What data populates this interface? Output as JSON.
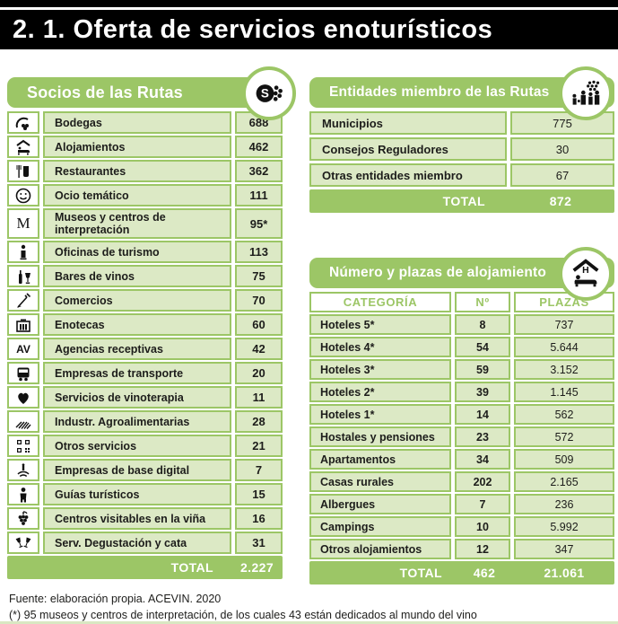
{
  "title": "2. 1. Oferta de servicios enoturísticos",
  "colors": {
    "accent_green": "#9CC666",
    "cell_green": "#DCE9C5",
    "title_black": "#000000",
    "text_dark": "#1D1D1B",
    "white": "#FFFFFF"
  },
  "socios_table": {
    "header": "Socios de las Rutas",
    "header_icon": "socios-badge-icon",
    "rows": [
      {
        "icon": "winery-icon",
        "label": "Bodegas",
        "value": "688"
      },
      {
        "icon": "lodging-icon",
        "label": "Alojamientos",
        "value": "462"
      },
      {
        "icon": "restaurant-icon",
        "label": "Restaurantes",
        "value": "362"
      },
      {
        "icon": "smiley-icon",
        "label": "Ocio temático",
        "value": "111"
      },
      {
        "icon": "museum-letter-icon",
        "label": "Museos y centros de interpretación",
        "value": "95*"
      },
      {
        "icon": "tourism-office-icon",
        "label": "Oficinas de turismo",
        "value": "113"
      },
      {
        "icon": "wine-bar-icon",
        "label": "Bares de vinos",
        "value": "75"
      },
      {
        "icon": "commerce-icon",
        "label": "Comercios",
        "value": "70"
      },
      {
        "icon": "wine-rack-icon",
        "label": "Enotecas",
        "value": "60"
      },
      {
        "icon": "travel-agency-letters-icon",
        "label": "Agencias receptivas",
        "value": "42"
      },
      {
        "icon": "bus-icon",
        "label": "Empresas de transporte",
        "value": "20"
      },
      {
        "icon": "heart-spa-icon",
        "label": "Servicios de vinoterapia",
        "value": "11"
      },
      {
        "icon": "field-rows-icon",
        "label": "Industr. Agroalimentarias",
        "value": "28"
      },
      {
        "icon": "qr-code-icon",
        "label": "Otros servicios",
        "value": "21"
      },
      {
        "icon": "wifi-signal-icon",
        "label": "Empresas de base digital",
        "value": "7"
      },
      {
        "icon": "person-guide-icon",
        "label": "Guías turísticos",
        "value": "15"
      },
      {
        "icon": "grapes-icon",
        "label": "Centros visitables en la viña",
        "value": "16"
      },
      {
        "icon": "wine-glasses-icon",
        "label": "Serv. Degustación y cata",
        "value": "31"
      }
    ],
    "total_label": "TOTAL",
    "total_value": "2.227"
  },
  "entidades_table": {
    "header": "Entidades miembro de las Rutas",
    "header_icon": "entities-badge-icon",
    "rows": [
      {
        "label": "Municipios",
        "value": "775"
      },
      {
        "label": "Consejos Reguladores",
        "value": "30"
      },
      {
        "label": "Otras entidades miembro",
        "value": "67"
      }
    ],
    "total_label": "TOTAL",
    "total_value": "872"
  },
  "alojamiento_table": {
    "header": "Número y plazas de alojamiento",
    "header_icon": "lodging-badge-icon",
    "columns": [
      "CATEGORÍA",
      "Nº",
      "PLAZAS"
    ],
    "rows": [
      {
        "category": "Hoteles 5*",
        "n": "8",
        "plazas": "737"
      },
      {
        "category": "Hoteles 4*",
        "n": "54",
        "plazas": "5.644"
      },
      {
        "category": "Hoteles 3*",
        "n": "59",
        "plazas": "3.152"
      },
      {
        "category": "Hoteles 2*",
        "n": "39",
        "plazas": "1.145"
      },
      {
        "category": "Hoteles 1*",
        "n": "14",
        "plazas": "562"
      },
      {
        "category": "Hostales y pensiones",
        "n": "23",
        "plazas": "572"
      },
      {
        "category": "Apartamentos",
        "n": "34",
        "plazas": "509"
      },
      {
        "category": "Casas rurales",
        "n": "202",
        "plazas": "2.165"
      },
      {
        "category": "Albergues",
        "n": "7",
        "plazas": "236"
      },
      {
        "category": "Campings",
        "n": "10",
        "plazas": "5.992"
      },
      {
        "category": "Otros alojamientos",
        "n": "12",
        "plazas": "347"
      }
    ],
    "total_label": "TOTAL",
    "total_n": "462",
    "total_plazas": "21.061"
  },
  "footer": {
    "line1": "Fuente: elaboración propia. ACEVIN. 2020",
    "line2": "(*) 95 museos y centros de interpretación, de los cuales 43 están dedicados al mundo del vino"
  }
}
